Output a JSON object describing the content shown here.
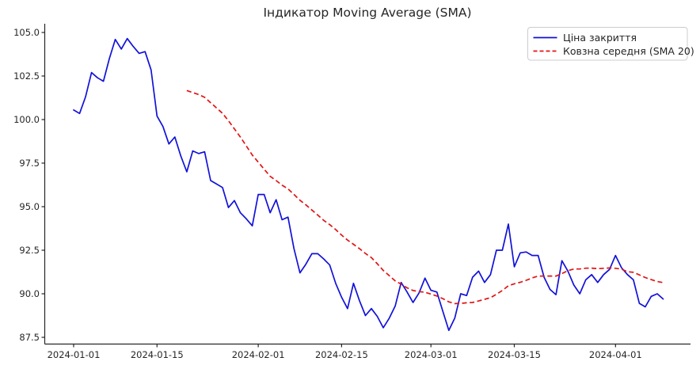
{
  "chart": {
    "title": "Індикатор Moving Average (SMA)",
    "legend": [
      {
        "label": "Ціна закриття",
        "color": "#1212d8",
        "style": "solid"
      },
      {
        "label": "Ковзна середня (SMA 20)",
        "color": "#e11414",
        "style": "dashed"
      }
    ]
  },
  "chart_data": {
    "type": "line",
    "title": "Індикатор Moving Average (SMA)",
    "xlabel": "",
    "ylabel": "",
    "grid": false,
    "legend_position": "upper right",
    "x_start_date": "2024-01-01",
    "x_ticks": [
      {
        "day": 0,
        "label": "2024-01-01"
      },
      {
        "day": 14,
        "label": "2024-01-15"
      },
      {
        "day": 31,
        "label": "2024-02-01"
      },
      {
        "day": 45,
        "label": "2024-02-15"
      },
      {
        "day": 60,
        "label": "2024-03-01"
      },
      {
        "day": 74,
        "label": "2024-03-15"
      },
      {
        "day": 91,
        "label": "2024-04-01"
      }
    ],
    "y_ticks": [
      87.5,
      90.0,
      92.5,
      95.0,
      97.5,
      100.0,
      102.5,
      105.0
    ],
    "ylim": [
      87.1,
      105.6
    ],
    "series": [
      {
        "name": "Ціна закриття",
        "type": "line",
        "color": "#1212d8",
        "dash": "none",
        "values": [
          100.55,
          100.35,
          101.3,
          102.7,
          102.4,
          102.2,
          103.5,
          104.6,
          104.05,
          104.65,
          104.2,
          103.8,
          103.9,
          102.85,
          100.2,
          99.6,
          98.6,
          99.0,
          97.9,
          97.0,
          98.2,
          98.05,
          98.15,
          96.5,
          96.3,
          96.1,
          94.95,
          95.35,
          94.65,
          94.3,
          93.9,
          95.7,
          95.7,
          94.65,
          95.4,
          94.25,
          94.4,
          92.6,
          91.2,
          91.7,
          92.3,
          92.3,
          92.0,
          91.65,
          90.6,
          89.8,
          89.15,
          90.6,
          89.6,
          88.75,
          89.15,
          88.7,
          88.05,
          88.6,
          89.3,
          90.65,
          90.1,
          89.5,
          90.05,
          90.9,
          90.2,
          90.1,
          89.0,
          87.9,
          88.6,
          90.0,
          89.9,
          90.95,
          91.3,
          90.65,
          91.1,
          92.5,
          92.5,
          94.0,
          91.55,
          92.35,
          92.4,
          92.2,
          92.2,
          90.95,
          90.25,
          89.95,
          91.9,
          91.3,
          90.5,
          90.0,
          90.8,
          91.1,
          90.65,
          91.1,
          91.4,
          92.2,
          91.5,
          91.1,
          90.8,
          89.45,
          89.25,
          89.85,
          90.0,
          89.7
        ]
      },
      {
        "name": "Ковзна середня (SMA 20)",
        "type": "line",
        "color": "#e11414",
        "dash": "dashed",
        "derived": "sma",
        "window": 20
      }
    ]
  }
}
